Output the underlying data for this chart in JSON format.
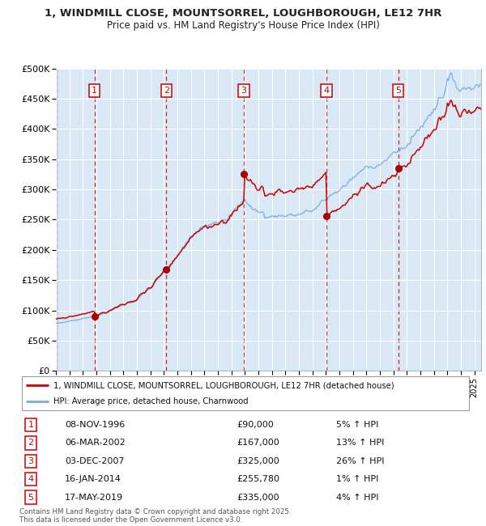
{
  "title": "1, WINDMILL CLOSE, MOUNTSORREL, LOUGHBOROUGH, LE12 7HR",
  "subtitle": "Price paid vs. HM Land Registry's House Price Index (HPI)",
  "ylim": [
    0,
    500000
  ],
  "yticks": [
    0,
    50000,
    100000,
    150000,
    200000,
    250000,
    300000,
    350000,
    400000,
    450000,
    500000
  ],
  "ytick_labels": [
    "£0",
    "£50K",
    "£100K",
    "£150K",
    "£200K",
    "£250K",
    "£300K",
    "£350K",
    "£400K",
    "£450K",
    "£500K"
  ],
  "background_color": "#d8e8f5",
  "grid_color": "#ffffff",
  "red_line_color": "#cc0000",
  "blue_line_color": "#7aade0",
  "sale_points": [
    {
      "label": "1",
      "date_decimal": 1996.86,
      "price": 90000
    },
    {
      "label": "2",
      "date_decimal": 2002.18,
      "price": 167000
    },
    {
      "label": "3",
      "date_decimal": 2007.92,
      "price": 325000
    },
    {
      "label": "4",
      "date_decimal": 2014.04,
      "price": 255780
    },
    {
      "label": "5",
      "date_decimal": 2019.37,
      "price": 335000
    }
  ],
  "legend_entries": [
    {
      "label": "1, WINDMILL CLOSE, MOUNTSORREL, LOUGHBOROUGH, LE12 7HR (detached house)",
      "color": "#cc0000"
    },
    {
      "label": "HPI: Average price, detached house, Charnwood",
      "color": "#7aade0"
    }
  ],
  "table_rows": [
    {
      "num": "1",
      "date": "08-NOV-1996",
      "price": "£90,000",
      "hpi": "5% ↑ HPI"
    },
    {
      "num": "2",
      "date": "06-MAR-2002",
      "price": "£167,000",
      "hpi": "13% ↑ HPI"
    },
    {
      "num": "3",
      "date": "03-DEC-2007",
      "price": "£325,000",
      "hpi": "26% ↑ HPI"
    },
    {
      "num": "4",
      "date": "16-JAN-2014",
      "price": "£255,780",
      "hpi": "1% ↑ HPI"
    },
    {
      "num": "5",
      "date": "17-MAY-2019",
      "price": "£335,000",
      "hpi": "4% ↑ HPI"
    }
  ],
  "footer": "Contains HM Land Registry data © Crown copyright and database right 2025.\nThis data is licensed under the Open Government Licence v3.0."
}
